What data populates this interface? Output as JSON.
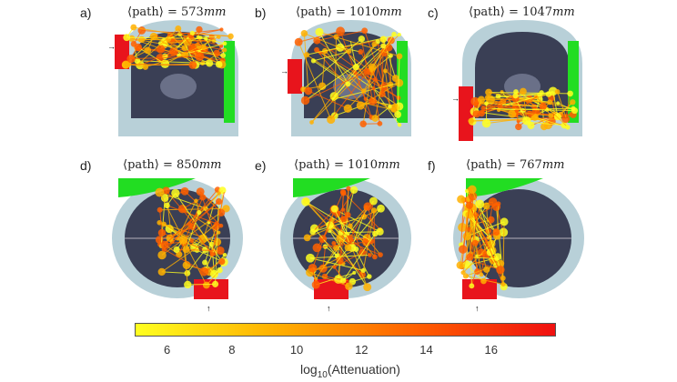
{
  "panels": [
    {
      "label": "a)",
      "path_label": "⟨path⟩ = ",
      "value": "573",
      "unit": "mm",
      "view": "coronal",
      "source_side": "left",
      "region": "top"
    },
    {
      "label": "b)",
      "path_label": "⟨path⟩ = ",
      "value": "1010",
      "unit": "mm",
      "view": "coronal",
      "source_side": "left",
      "region": "full"
    },
    {
      "label": "c)",
      "path_label": "⟨path⟩ = ",
      "value": "1047",
      "unit": "mm",
      "view": "coronal",
      "source_side": "left",
      "region": "bottom"
    },
    {
      "label": "d)",
      "path_label": "⟨path⟩ = ",
      "value": "850",
      "unit": "mm",
      "view": "axial",
      "source_side": "bottom-right",
      "region": "right"
    },
    {
      "label": "e)",
      "path_label": "⟨path⟩ = ",
      "value": "1010",
      "unit": "mm",
      "view": "axial",
      "source_side": "bottom-center",
      "region": "center"
    },
    {
      "label": "f)",
      "path_label": "⟨path⟩ = ",
      "value": "767",
      "unit": "mm",
      "view": "axial",
      "source_side": "bottom-left",
      "region": "left"
    }
  ],
  "colorbar": {
    "label_prefix": "log",
    "label_sub": "10",
    "label_suffix": "(Attenuation)",
    "range": [
      5,
      18
    ],
    "ticks": [
      "6",
      "8",
      "10",
      "12",
      "14",
      "16"
    ],
    "colors": [
      "#ffff20",
      "#ffb000",
      "#ff6000",
      "#f01010"
    ]
  },
  "colors": {
    "source": "#e8141c",
    "detector": "#22dd22",
    "scalp": "#b8d0d8",
    "brain": "#3a3f55"
  }
}
